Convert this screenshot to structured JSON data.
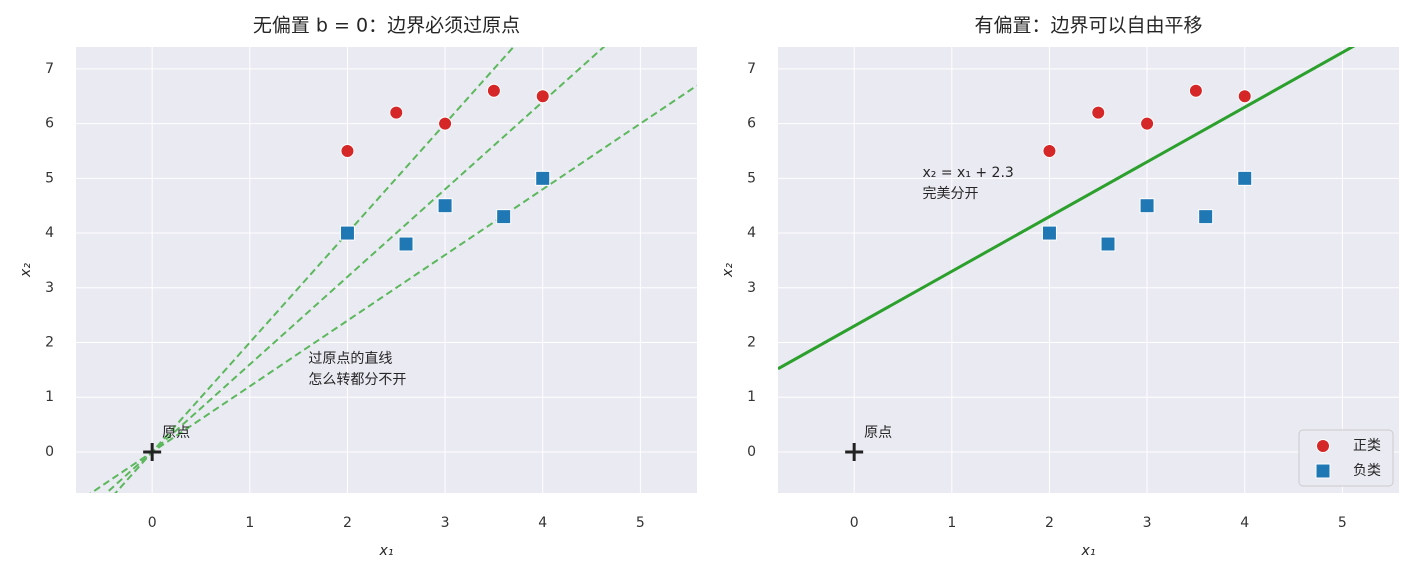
{
  "chart_data": [
    {
      "type": "scatter",
      "title": "无偏置 b = 0：边界必须过原点",
      "xlabel": "x₁",
      "ylabel": "x₂",
      "xlim": [
        -0.78,
        5.58
      ],
      "ylim": [
        -0.75,
        7.4
      ],
      "xticks": [
        0,
        1,
        2,
        3,
        4,
        5
      ],
      "yticks": [
        0,
        1,
        2,
        3,
        4,
        5,
        6,
        7
      ],
      "grid": true,
      "series": [
        {
          "color": "#d62728",
          "marker": "circle",
          "x": [
            2,
            2.5,
            3,
            3.5,
            4
          ],
          "values": [
            5.5,
            6.2,
            6,
            6.6,
            6.5
          ]
        },
        {
          "color": "#1f77b4",
          "marker": "square",
          "x": [
            2,
            2.6,
            3,
            3.6,
            4
          ],
          "values": [
            4,
            3.8,
            4.5,
            4.3,
            5
          ]
        }
      ],
      "lines": [
        {
          "slope": 2.0,
          "intercept": 0,
          "color": "#5cb85c",
          "style": "dashed"
        },
        {
          "slope": 1.6,
          "intercept": 0,
          "color": "#5cb85c",
          "style": "dashed"
        },
        {
          "slope": 1.2,
          "intercept": 0,
          "color": "#5cb85c",
          "style": "dashed"
        }
      ],
      "origin": {
        "x": 0,
        "y": 0,
        "label": "原点"
      },
      "annotations": [
        {
          "text": [
            "过原点的直线",
            "怎么转都分不开"
          ],
          "x": 1.6,
          "y": 1.7,
          "color": "#2ca02c"
        }
      ]
    },
    {
      "type": "scatter",
      "title": "有偏置：边界可以自由平移",
      "xlabel": "x₁",
      "ylabel": "x₂",
      "xlim": [
        -0.78,
        5.58
      ],
      "ylim": [
        -0.75,
        7.4
      ],
      "xticks": [
        0,
        1,
        2,
        3,
        4,
        5
      ],
      "yticks": [
        0,
        1,
        2,
        3,
        4,
        5,
        6,
        7
      ],
      "grid": true,
      "series": [
        {
          "name": "正类",
          "color": "#d62728",
          "marker": "circle",
          "x": [
            2,
            2.5,
            3,
            3.5,
            4
          ],
          "values": [
            5.5,
            6.2,
            6,
            6.6,
            6.5
          ]
        },
        {
          "name": "负类",
          "color": "#1f77b4",
          "marker": "square",
          "x": [
            2,
            2.6,
            3,
            3.6,
            4
          ],
          "values": [
            4,
            3.8,
            4.5,
            4.3,
            5
          ]
        }
      ],
      "lines": [
        {
          "slope": 1,
          "intercept": 2.3,
          "color": "#2ca02c",
          "style": "solid"
        }
      ],
      "origin": {
        "x": 0,
        "y": 0,
        "label": "原点"
      },
      "annotations": [
        {
          "text": [
            "x₂ = x₁ + 2.3",
            "完美分开"
          ],
          "x": 0.7,
          "y": 5.1,
          "color": "#2ca02c"
        }
      ],
      "legend": "lower right"
    }
  ]
}
